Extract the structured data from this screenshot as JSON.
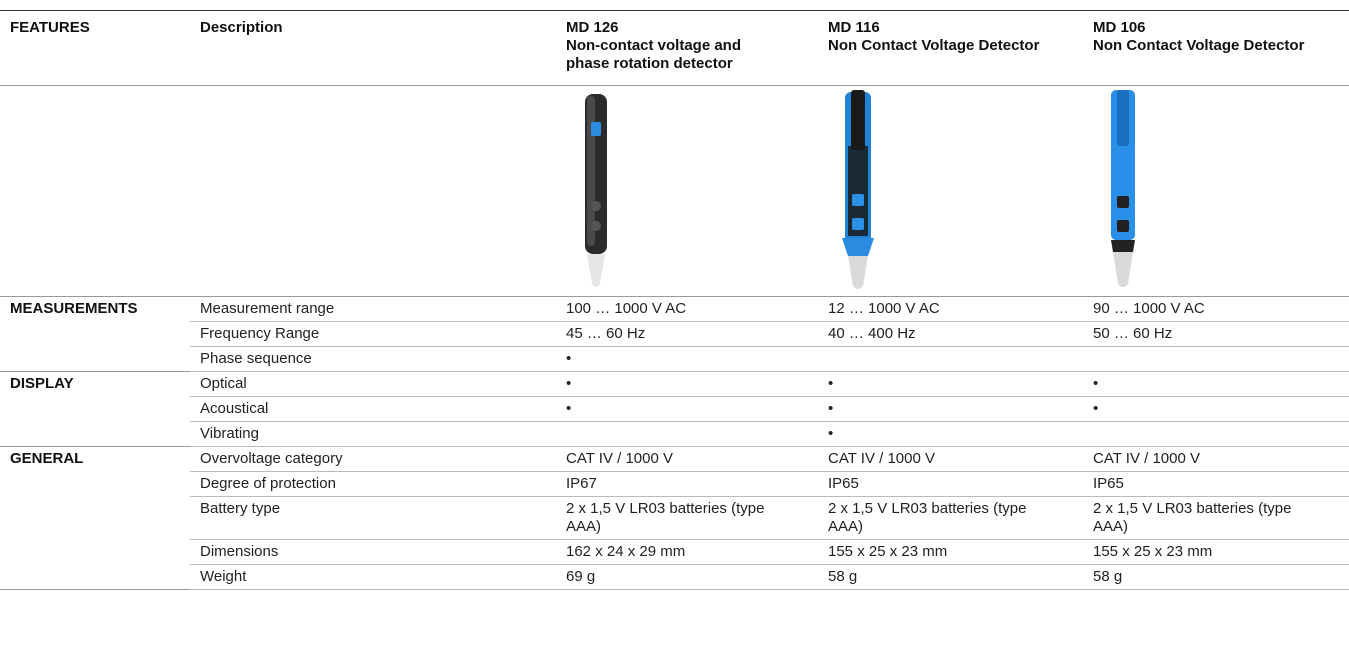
{
  "table": {
    "header": [
      "FEATURES",
      "Description"
    ],
    "products": [
      {
        "model": "MD 126",
        "name": "Non-contact voltage and phase rotation detector"
      },
      {
        "model": "MD 116",
        "name": "Non Contact Voltage Detector"
      },
      {
        "model": "MD 106",
        "name": "Non Contact Voltage Detector"
      }
    ],
    "sections": [
      {
        "title": "MEASUREMENTS",
        "rows": [
          [
            "Measurement range",
            "100 … 1000 V AC",
            "12 … 1000 V AC",
            "90 … 1000 V AC"
          ],
          [
            "Frequency Range",
            "45 … 60 Hz",
            "40 … 400 Hz",
            "50 … 60 Hz"
          ],
          [
            "Phase sequence",
            "•",
            null,
            null
          ]
        ]
      },
      {
        "title": "DISPLAY",
        "rows": [
          [
            "Optical",
            "•",
            "•",
            "•"
          ],
          [
            "Acoustical",
            "•",
            "•",
            "•"
          ],
          [
            "Vibrating",
            null,
            "•",
            null
          ]
        ]
      },
      {
        "title": "GENERAL",
        "rows": [
          [
            "Overvoltage category",
            "CAT IV / 1000 V",
            "CAT IV / 1000 V",
            "CAT IV / 1000 V"
          ],
          [
            "Degree of protection",
            "IP67",
            "IP65",
            "IP65"
          ],
          [
            "Battery type",
            "2 x 1,5 V LR03 batteries (type AAA)",
            "2 x 1,5 V LR03 batteries (type AAA)",
            "2 x 1,5 V LR03 batteries (type AAA)"
          ],
          [
            "Dimensions",
            "162 x 24 x 29 mm",
            "155 x 25 x 23 mm",
            "155 x 25 x 23 mm"
          ],
          [
            "Weight",
            "69 g",
            "58 g",
            "58 g"
          ]
        ]
      }
    ]
  }
}
